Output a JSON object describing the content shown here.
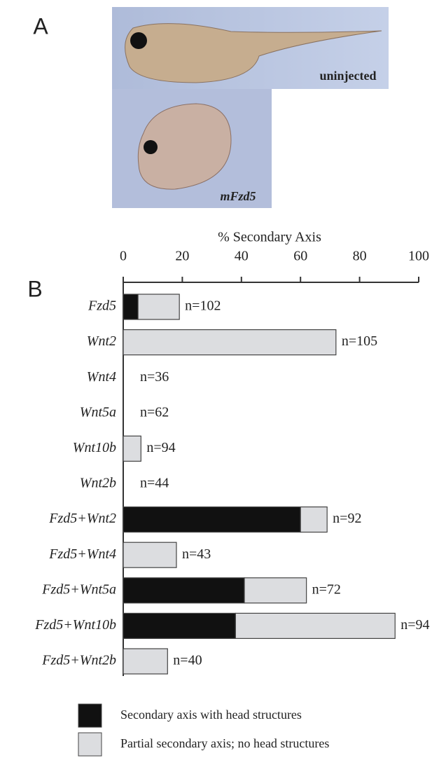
{
  "panel_a": {
    "label": "A",
    "photos": [
      "uninjected",
      "mFzd5"
    ]
  },
  "chart_data": {
    "type": "bar",
    "orientation": "horizontal",
    "stacked": true,
    "panel_label": "B",
    "x_label": "% Secondary Axis",
    "categories": [
      "Fzd5",
      "Wnt2",
      "Wnt4",
      "Wnt5a",
      "Wnt10b",
      "Wnt2b",
      "Fzd5+Wnt2",
      "Fzd5+Wnt4",
      "Fzd5+Wnt5a",
      "Fzd5+Wnt10b",
      "Fzd5+Wnt2b"
    ],
    "series": [
      {
        "name": "Secondary axis with head structures",
        "color": "#111111",
        "values": [
          5,
          0,
          0,
          0,
          0,
          0,
          60,
          0,
          41,
          38,
          0
        ]
      },
      {
        "name": "Partial secondary axis; no head structures",
        "color": "#dcdde0",
        "values": [
          14,
          72,
          0,
          0,
          6,
          0,
          9,
          18,
          21,
          54,
          15
        ]
      }
    ],
    "bar_labels": [
      "n=102",
      "n=105",
      "n=36",
      "n=62",
      "n=94",
      "n=44",
      "n=92",
      "n=43",
      "n=72",
      "n=94",
      "n=40"
    ],
    "xlim": [
      0,
      100
    ],
    "xticks": [
      0,
      20,
      40,
      60,
      80,
      100
    ]
  }
}
